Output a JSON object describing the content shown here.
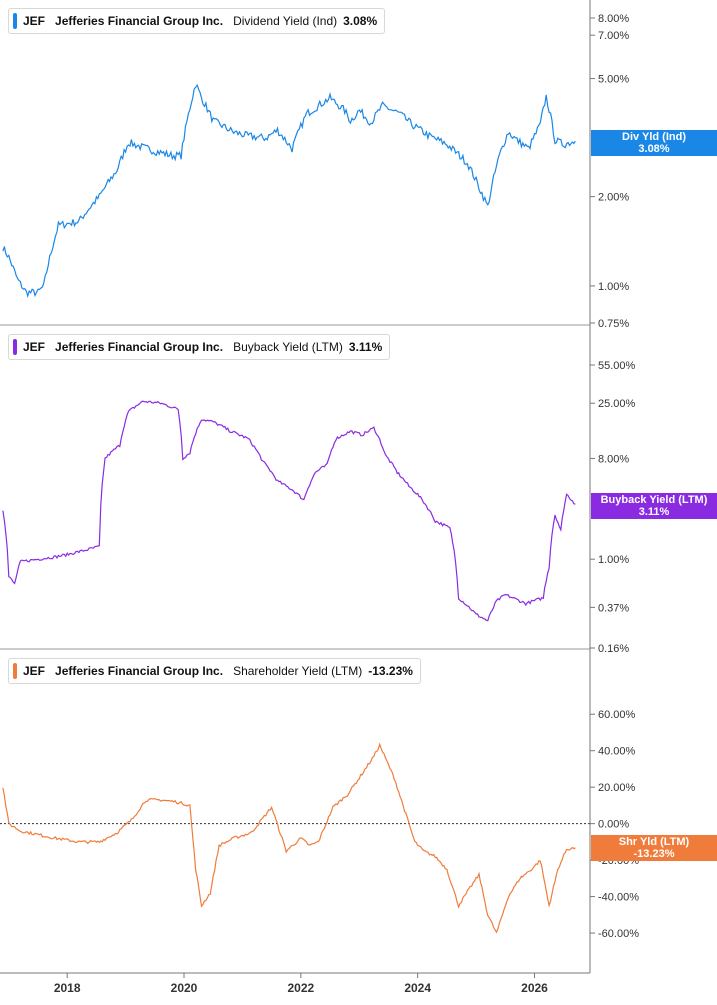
{
  "chart_data": [
    {
      "type": "line",
      "ticker": "JEF",
      "company": "Jefferies Financial Group Inc.",
      "metric": "Dividend Yield (Ind)",
      "value_label": "3.08%",
      "badge_line1": "Div Yld (Ind)",
      "badge_line2": "3.08%",
      "color": "#1a87e6",
      "scale": "log",
      "ylim": [
        0.75,
        8.0
      ],
      "yticks": [
        "8.00%",
        "7.00%",
        "5.00%",
        "2.00%",
        "1.00%",
        "0.75%"
      ],
      "ytick_values": [
        8.0,
        7.0,
        5.0,
        2.0,
        1.0,
        0.75
      ],
      "x": [
        2016.9,
        2017.0,
        2017.15,
        2017.3,
        2017.5,
        2017.6,
        2017.85,
        2018.2,
        2018.55,
        2018.85,
        2019.05,
        2019.25,
        2019.5,
        2019.8,
        2019.95,
        2020.2,
        2020.3,
        2020.5,
        2020.85,
        2021.1,
        2021.4,
        2021.6,
        2021.85,
        2022.1,
        2022.5,
        2022.75,
        2022.85,
        2023.0,
        2023.2,
        2023.4,
        2023.7,
        2023.9,
        2024.2,
        2024.5,
        2024.85,
        2025.05,
        2025.2,
        2025.4,
        2025.55,
        2025.7,
        2025.9,
        2026.1,
        2026.2,
        2026.35,
        2026.5,
        2026.7
      ],
      "y": [
        1.35,
        1.25,
        1.05,
        0.95,
        0.95,
        1.0,
        1.6,
        1.65,
        2.0,
        2.45,
        3.05,
        2.95,
        2.85,
        2.75,
        2.75,
        4.8,
        4.3,
        3.6,
        3.3,
        3.2,
        3.15,
        3.35,
        2.9,
        3.8,
        4.3,
        3.9,
        3.6,
        3.9,
        3.55,
        4.05,
        3.8,
        3.5,
        3.2,
        3.0,
        2.6,
        2.15,
        1.85,
        2.75,
        3.3,
        3.1,
        2.9,
        3.5,
        4.35,
        3.1,
        3.0,
        3.08
      ]
    },
    {
      "type": "line",
      "ticker": "JEF",
      "company": "Jefferies Financial Group Inc.",
      "metric": "Buyback Yield (LTM)",
      "value_label": "3.11%",
      "badge_line1": "Buyback Yield (LTM)",
      "badge_line2": "3.11%",
      "color": "#8a2be2",
      "scale": "log",
      "ylim": [
        0.16,
        55.0
      ],
      "yticks": [
        "55.00%",
        "25.00%",
        "8.00%",
        "1.00%",
        "0.37%",
        "0.16%"
      ],
      "ytick_values": [
        55.0,
        25.0,
        8.0,
        1.0,
        0.37,
        0.16
      ],
      "x": [
        2016.9,
        2017.0,
        2017.1,
        2017.2,
        2017.5,
        2017.8,
        2018.0,
        2018.3,
        2018.55,
        2018.65,
        2018.9,
        2019.05,
        2019.3,
        2019.6,
        2019.9,
        2019.98,
        2020.1,
        2020.3,
        2020.5,
        2020.8,
        2021.1,
        2021.35,
        2021.6,
        2021.85,
        2022.05,
        2022.25,
        2022.45,
        2022.6,
        2022.85,
        2023.05,
        2023.25,
        2023.45,
        2023.65,
        2023.85,
        2024.0,
        2024.3,
        2024.55,
        2024.7,
        2025.0,
        2025.2,
        2025.35,
        2025.5,
        2025.85,
        2026.15,
        2026.25,
        2026.35,
        2026.45,
        2026.55,
        2026.7
      ],
      "y": [
        2.8,
        0.7,
        0.6,
        0.95,
        1.0,
        1.05,
        1.1,
        1.2,
        1.3,
        8.0,
        10.5,
        21.0,
        26.0,
        25.0,
        22.0,
        8.0,
        9.0,
        18.0,
        17.0,
        14.0,
        12.0,
        7.5,
        5.0,
        4.2,
        3.4,
        6.0,
        7.0,
        12.0,
        14.0,
        13.0,
        15.0,
        8.5,
        6.0,
        4.5,
        3.8,
        2.2,
        1.9,
        0.45,
        0.32,
        0.28,
        0.42,
        0.48,
        0.4,
        0.45,
        0.85,
        2.5,
        1.8,
        3.8,
        3.11
      ]
    },
    {
      "type": "line",
      "ticker": "JEF",
      "company": "Jefferies Financial Group Inc.",
      "metric": "Shareholder Yield (LTM)",
      "value_label": "-13.23%",
      "badge_line1": "Shr Yld (LTM)",
      "badge_line2": "-13.23%",
      "color": "#f07c3c",
      "scale": "linear",
      "ylim": [
        -66.0,
        70.0
      ],
      "yticks": [
        "60.00%",
        "40.00%",
        "20.00%",
        "0.00%",
        "-20.00%",
        "-40.00%",
        "-60.00%"
      ],
      "ytick_values": [
        60,
        40,
        20,
        0,
        -20,
        -40,
        -60
      ],
      "reference_line": 0,
      "x": [
        2016.9,
        2017.0,
        2017.2,
        2017.5,
        2017.8,
        2018.2,
        2018.55,
        2018.85,
        2019.1,
        2019.35,
        2019.6,
        2019.85,
        2019.98,
        2020.1,
        2020.2,
        2020.3,
        2020.45,
        2020.6,
        2020.85,
        2021.15,
        2021.5,
        2021.75,
        2022.0,
        2022.15,
        2022.3,
        2022.55,
        2022.8,
        2023.0,
        2023.25,
        2023.35,
        2023.6,
        2023.75,
        2023.95,
        2024.1,
        2024.3,
        2024.5,
        2024.7,
        2024.9,
        2025.05,
        2025.2,
        2025.35,
        2025.55,
        2025.75,
        2025.95,
        2026.1,
        2026.25,
        2026.4,
        2026.55,
        2026.7
      ],
      "y": [
        20,
        0,
        -4,
        -6,
        -8,
        -10,
        -10,
        -5,
        2,
        13,
        13,
        12,
        11,
        10,
        -25,
        -45,
        -38,
        -12,
        -8,
        -5,
        9,
        -15,
        -8,
        -12,
        -10,
        9,
        16,
        25,
        37,
        43,
        25,
        10,
        -10,
        -15,
        -18,
        -25,
        -45,
        -35,
        -28,
        -50,
        -60,
        -40,
        -30,
        -25,
        -20,
        -45,
        -25,
        -14,
        -13.23
      ]
    }
  ],
  "x_axis": {
    "ticks": [
      "2018",
      "2020",
      "2022",
      "2024",
      "2026"
    ],
    "tick_values": [
      2018,
      2020,
      2022,
      2024,
      2026
    ],
    "range": [
      2016.85,
      2026.95
    ]
  }
}
